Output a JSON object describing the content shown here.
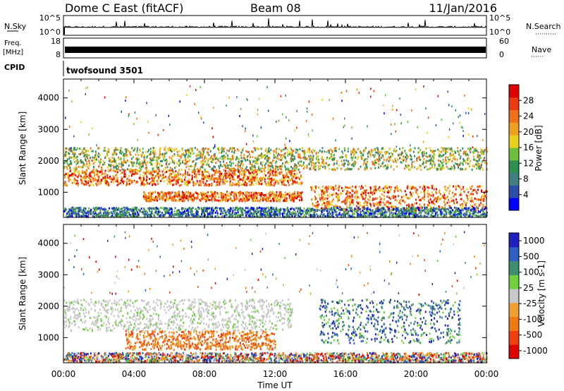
{
  "header": {
    "title": "Dome C East (fitACF)",
    "beam": "Beam 08",
    "date": "11/Jan/2016"
  },
  "strips": {
    "nsky_label": "N.Sky",
    "nsky_ticks": [
      "10^5",
      "10^0"
    ],
    "nsearch_label": "N.Search",
    "freq_label_1": "Freq.",
    "freq_label_2": "[MHz]",
    "freq_ticks": [
      "18",
      "8"
    ],
    "nave_label": "Nave",
    "nave_ticks": [
      "60",
      "0"
    ],
    "cpid_label": "CPID",
    "cpid_value": "twofsound 3501"
  },
  "chart_data": [
    {
      "type": "heatmap",
      "title": "",
      "ylabel": "Slant Range [km]",
      "xlabel": "",
      "xlim": [
        0,
        24
      ],
      "ylim": [
        200,
        4600
      ],
      "yticks": [
        1000,
        2000,
        3000,
        4000
      ],
      "colorbar": {
        "label": "Power [dB]",
        "ticks": [
          "4",
          "8",
          "12",
          "16",
          "20",
          "24",
          "28"
        ],
        "range": [
          0,
          30
        ],
        "colors": [
          "#0000ff",
          "#2b4fa8",
          "#3f7f7f",
          "#2f8f4f",
          "#6fbf3f",
          "#e8d21a",
          "#f0a020",
          "#f07018",
          "#ee3a10",
          "#e00000"
        ]
      },
      "echo_bands": [
        {
          "t0": 0.0,
          "t1": 13.5,
          "r0": 1200,
          "r1": 1700,
          "level": "high"
        },
        {
          "t0": 4.5,
          "t1": 13.5,
          "r0": 700,
          "r1": 1000,
          "level": "high"
        },
        {
          "t0": 14.0,
          "t1": 24.0,
          "r0": 400,
          "r1": 1200,
          "level": "high"
        },
        {
          "t0": 0.0,
          "t1": 24.0,
          "r0": 1700,
          "r1": 2400,
          "level": "mid"
        },
        {
          "t0": 0.0,
          "t1": 24.0,
          "r0": 200,
          "r1": 500,
          "level": "low"
        }
      ]
    },
    {
      "type": "heatmap",
      "title": "",
      "ylabel": "Slant Range [km]",
      "xlabel": "Time UT",
      "xlim": [
        0,
        24
      ],
      "ylim": [
        200,
        4600
      ],
      "xticks": [
        "00:00",
        "04:00",
        "08:00",
        "12:00",
        "16:00",
        "20:00",
        "00:00"
      ],
      "yticks": [
        1000,
        2000,
        3000,
        4000
      ],
      "colorbar": {
        "label": "Velocity [m s-1]",
        "ticks": [
          "1000",
          "500",
          "100",
          "25",
          "-25",
          "-100",
          "-500",
          "-1000"
        ],
        "range": [
          -1000,
          1000
        ],
        "colors": [
          "#e00000",
          "#f04010",
          "#f07a10",
          "#f0a030",
          "#c8c8c8",
          "#6fcf3f",
          "#3f8f6f",
          "#2f5fbf",
          "#2020c0"
        ]
      },
      "echo_bands": [
        {
          "t0": 0.0,
          "t1": 13.0,
          "r0": 1200,
          "r1": 2200,
          "level": "ground"
        },
        {
          "t0": 3.5,
          "t1": 12.0,
          "r0": 600,
          "r1": 1200,
          "level": "negative"
        },
        {
          "t0": 14.5,
          "t1": 22.5,
          "r0": 800,
          "r1": 2200,
          "level": "positive"
        },
        {
          "t0": 0.0,
          "t1": 24.0,
          "r0": 200,
          "r1": 500,
          "level": "mixed"
        }
      ]
    }
  ]
}
